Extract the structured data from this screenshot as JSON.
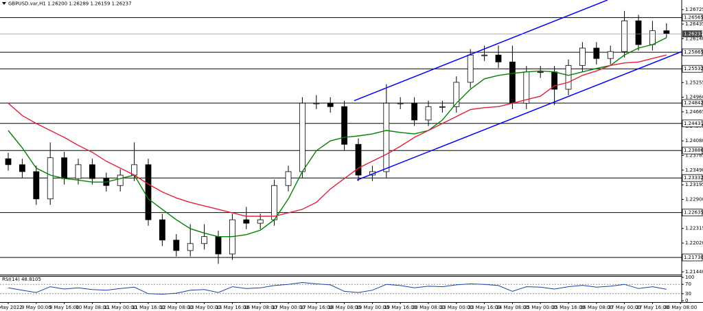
{
  "chart_data": {
    "type": "candlestick",
    "title": "GBPUSD.var,H1 1.26200 1.26289 1.26159 1.26237",
    "categories": [
      "5 May 2022",
      null,
      "9 May 00:00",
      null,
      "9 May 16:00",
      null,
      "10 May 08:00",
      null,
      "11 May 00:00",
      null,
      "11 May 16:00",
      null,
      "12 May 08:00",
      null,
      "13 May 00:00",
      null,
      "13 May 16:00",
      null,
      "16 May 08:00",
      null,
      "17 May 00:00",
      null,
      "17 May 16:00",
      null,
      "18 May 08:00",
      null,
      "19 May 00:00",
      null,
      "19 May 16:00",
      null,
      "20 May 08:00",
      null,
      "23 May 00:00",
      null,
      "23 May 16:00",
      null,
      "24 May 08:00",
      null,
      "25 May 00:00",
      null,
      "25 May 16:00",
      null,
      "26 May 08:00",
      null,
      "27 May 00:00",
      null,
      "27 May 16:00",
      null,
      "30 May 08:00"
    ],
    "open": [
      1.2372,
      1.236,
      1.2346,
      1.2291,
      1.2374,
      1.2332,
      1.236,
      1.2332,
      1.2318,
      1.2339,
      1.236,
      1.2249,
      1.2208,
      1.2187,
      1.2201,
      1.2215,
      1.218,
      1.2249,
      1.2242,
      1.2249,
      1.2318,
      1.2346,
      1.2484,
      1.2484,
      1.2477,
      1.2401,
      1.2339,
      1.2346,
      1.2484,
      1.2484,
      1.245,
      1.2477,
      1.2477,
      1.2526,
      1.2581,
      1.2581,
      1.2567,
      1.2484,
      1.2547,
      1.2547,
      1.2512,
      1.256,
      1.2595,
      1.2574,
      1.2588,
      1.265,
      1.2602,
      1.263,
      null
    ],
    "high": [
      1.2384,
      1.2372,
      1.2358,
      1.2405,
      1.2386,
      1.2372,
      1.2372,
      1.2344,
      1.2351,
      1.2405,
      1.2372,
      1.2261,
      1.222,
      1.224,
      1.224,
      1.2227,
      1.2261,
      1.2275,
      1.2261,
      1.233,
      1.2358,
      1.2496,
      1.25,
      1.2496,
      1.2489,
      1.2413,
      1.2358,
      1.2522,
      1.2496,
      1.2496,
      1.2489,
      1.2489,
      1.2538,
      1.2593,
      1.26,
      1.26,
      1.26,
      1.2559,
      1.2559,
      1.2559,
      1.2572,
      1.2607,
      1.2607,
      1.26,
      1.267,
      1.2662,
      1.265,
      1.2645,
      null
    ],
    "low": [
      1.2348,
      1.2334,
      1.2279,
      1.2279,
      1.232,
      1.232,
      1.232,
      1.2306,
      1.2306,
      1.2327,
      1.2237,
      1.2196,
      1.2175,
      1.2175,
      1.2189,
      1.216,
      1.2168,
      1.223,
      1.223,
      1.2237,
      1.2306,
      1.2334,
      1.2472,
      1.2465,
      1.2389,
      1.2327,
      1.2327,
      1.2334,
      1.2472,
      1.2438,
      1.2438,
      1.2465,
      1.2465,
      1.2514,
      1.2569,
      1.2555,
      1.2472,
      1.2472,
      1.2535,
      1.248,
      1.25,
      1.2548,
      1.2562,
      1.2562,
      1.2576,
      1.259,
      1.259,
      1.2616,
      null
    ],
    "close": [
      1.236,
      1.2346,
      1.2291,
      1.2374,
      1.2332,
      1.236,
      1.2332,
      1.2318,
      1.2339,
      1.236,
      1.2249,
      1.2208,
      1.2187,
      1.2201,
      1.2215,
      1.218,
      1.2249,
      1.2242,
      1.2249,
      1.2318,
      1.2346,
      1.2484,
      1.2484,
      1.2477,
      1.2401,
      1.2339,
      1.2346,
      1.2484,
      1.2484,
      1.245,
      1.2477,
      1.2477,
      1.2526,
      1.2581,
      1.2581,
      1.2567,
      1.2484,
      1.2547,
      1.2547,
      1.2512,
      1.256,
      1.2595,
      1.2574,
      1.2588,
      1.265,
      1.2602,
      1.263,
      1.2624,
      null
    ],
    "up_color": "#ffffff",
    "down_color": "#000000",
    "series": [
      {
        "color": "#008000",
        "values": [
          1.2429,
          1.2394,
          1.2353,
          1.2339,
          1.2332,
          1.2329,
          1.2325,
          1.2325,
          1.2332,
          1.2339,
          1.2291,
          1.227,
          1.2249,
          1.2231,
          1.2222,
          1.2215,
          1.2215,
          1.2219,
          1.2228,
          1.2249,
          1.2291,
          1.2346,
          1.2388,
          1.2408,
          1.2415,
          1.2418,
          1.2422,
          1.2429,
          1.2425,
          1.2422,
          1.2429,
          1.245,
          1.2484,
          1.2512,
          1.2533,
          1.254,
          1.2544,
          1.2547,
          1.2549,
          1.2547,
          1.254,
          1.2547,
          1.2554,
          1.256,
          1.2581,
          1.2595,
          1.2602,
          1.2616,
          null
        ]
      },
      {
        "color": "#e0203a",
        "values": [
          1.2484,
          1.2459,
          1.2443,
          1.2429,
          1.2415,
          1.2399,
          1.2385,
          1.2367,
          1.2353,
          1.2339,
          1.2321,
          1.2305,
          1.2293,
          1.2284,
          1.2277,
          1.227,
          1.2263,
          1.2256,
          1.2256,
          1.2256,
          1.2263,
          1.227,
          1.2284,
          1.2311,
          1.2332,
          1.2353,
          1.2367,
          1.2381,
          1.2397,
          1.2415,
          1.2429,
          1.2443,
          1.2457,
          1.2471,
          1.2475,
          1.2477,
          1.2484,
          1.2491,
          1.2498,
          1.2519,
          1.2526,
          1.254,
          1.2549,
          1.256,
          1.2565,
          1.2567,
          1.2574,
          1.2581,
          null
        ]
      }
    ],
    "trendlines": [
      {
        "color": "#0000ff",
        "from": [
          24.7,
          1.2489
        ],
        "to": [
          42.8,
          1.2692
        ]
      },
      {
        "color": "#0000ff",
        "from": [
          24.9,
          1.2329
        ],
        "to": [
          48.1,
          1.2588
        ]
      }
    ],
    "ylim": [
      1.21412,
      1.26919
    ],
    "yticks": [
      1.26725,
      1.26435,
      {
        "value": 1.2614,
        "label": "1.26140"
      },
      1.25255,
      {
        "value": 1.2496,
        "label": "1.24960"
      },
      1.24665,
      1.24375,
      {
        "value": 1.2408,
        "label": "1.24080"
      },
      1.23785,
      {
        "value": 1.2349,
        "label": "1.23490"
      },
      1.23195,
      {
        "value": 1.229,
        "label": "1.22900"
      },
      1.22315,
      {
        "value": 1.2202,
        "label": "1.22020"
      },
      {
        "value": 1.2144,
        "label": "1.21440"
      }
    ],
    "levels": [
      1.26565,
      1.25865,
      1.25532,
      1.24842,
      1.24431,
      1.23886,
      1.23332,
      1.22635,
      {
        "value": 1.2173,
        "label": "1.21730"
      }
    ],
    "current_price": 1.26237,
    "rsi": {
      "title": "RSI(14) 48.8105",
      "color": "#1a3fa8",
      "ylim": [
        0,
        100
      ],
      "yticks": [
        100,
        70,
        30,
        0
      ],
      "levels": [
        70,
        30
      ],
      "values": [
        55,
        45,
        35,
        60,
        50,
        55,
        48,
        45,
        52,
        58,
        30,
        28,
        32,
        45,
        48,
        35,
        60,
        52,
        55,
        65,
        70,
        78,
        72,
        68,
        40,
        35,
        45,
        70,
        65,
        55,
        62,
        60,
        68,
        72,
        70,
        65,
        40,
        60,
        58,
        50,
        60,
        66,
        58,
        62,
        70,
        52,
        60,
        48.8105,
        null
      ]
    }
  }
}
